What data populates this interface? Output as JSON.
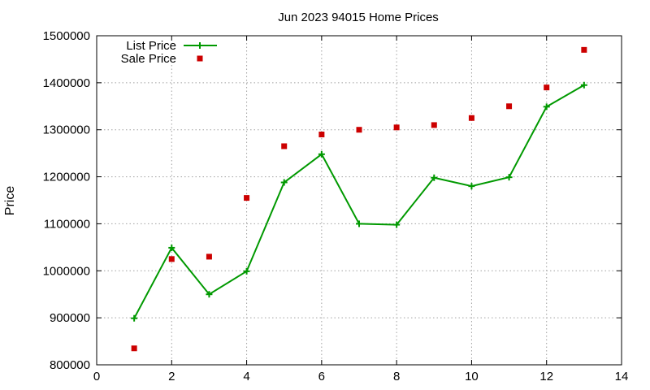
{
  "chart_data": {
    "type": "line",
    "title": "Jun 2023 94015 Home Prices",
    "xlabel": "",
    "ylabel": "Price",
    "xlim": [
      0,
      14
    ],
    "ylim": [
      800000,
      1500000
    ],
    "xticks": [
      0,
      2,
      4,
      6,
      8,
      10,
      12,
      14
    ],
    "yticks": [
      800000,
      900000,
      1000000,
      1100000,
      1200000,
      1300000,
      1400000,
      1500000
    ],
    "grid": true,
    "legend_position": "top-left",
    "series": [
      {
        "name": "List Price",
        "style": "line-with-plus-markers",
        "color": "#009900",
        "x": [
          1,
          2,
          3,
          4,
          5,
          6,
          7,
          8,
          9,
          10,
          11,
          12,
          13
        ],
        "values": [
          899000,
          1049000,
          950000,
          999000,
          1188000,
          1248000,
          1100000,
          1098000,
          1198000,
          1180000,
          1199000,
          1349000,
          1395000
        ]
      },
      {
        "name": "Sale Price",
        "style": "square-points",
        "color": "#cc0000",
        "x": [
          1,
          2,
          3,
          4,
          5,
          6,
          7,
          8,
          9,
          10,
          11,
          12,
          13
        ],
        "values": [
          835000,
          1025000,
          1030000,
          1155000,
          1265000,
          1290000,
          1300000,
          1305000,
          1310000,
          1325000,
          1350000,
          1390000,
          1470000
        ]
      }
    ]
  }
}
